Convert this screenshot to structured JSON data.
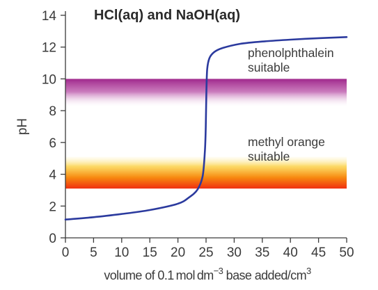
{
  "chart_data": {
    "type": "line",
    "title": "HCl(aq) and NaOH(aq)",
    "ylabel": "pH",
    "xlabel": {
      "part1": "volume of 0.1 mol dm",
      "exp1": "−3",
      "part2": " base added/cm",
      "exp2": "3"
    },
    "xlim": [
      0,
      50
    ],
    "ylim": [
      0,
      14
    ],
    "xticks": [
      0,
      5,
      10,
      15,
      20,
      25,
      30,
      35,
      40,
      45,
      50
    ],
    "yticks": [
      0,
      2,
      4,
      6,
      8,
      10,
      12,
      14
    ],
    "grid": false,
    "series": [
      {
        "color": "#2b3a9e",
        "x": [
          0,
          5,
          10,
          15,
          20,
          22,
          23.5,
          24.4,
          24.8,
          24.95,
          25.05,
          25.2,
          25.6,
          26.5,
          28,
          31,
          35,
          40,
          45,
          50
        ],
        "y": [
          1.15,
          1.3,
          1.5,
          1.75,
          2.15,
          2.55,
          3.05,
          3.9,
          5.5,
          7.0,
          9.0,
          10.6,
          11.3,
          11.7,
          11.95,
          12.2,
          12.35,
          12.47,
          12.56,
          12.63
        ]
      }
    ],
    "indicator_ranges": [
      {
        "label_lines": [
          "phenolphthalein",
          "suitable"
        ],
        "y_range": [
          8.2,
          10
        ],
        "color": "#a0288c",
        "fade": "downward"
      },
      {
        "label_lines": [
          "methyl orange",
          "suitable"
        ],
        "y_range": [
          3.1,
          5.1
        ],
        "color": "#f03010",
        "color_mid": "#f5a000",
        "fade": "upward"
      }
    ]
  }
}
